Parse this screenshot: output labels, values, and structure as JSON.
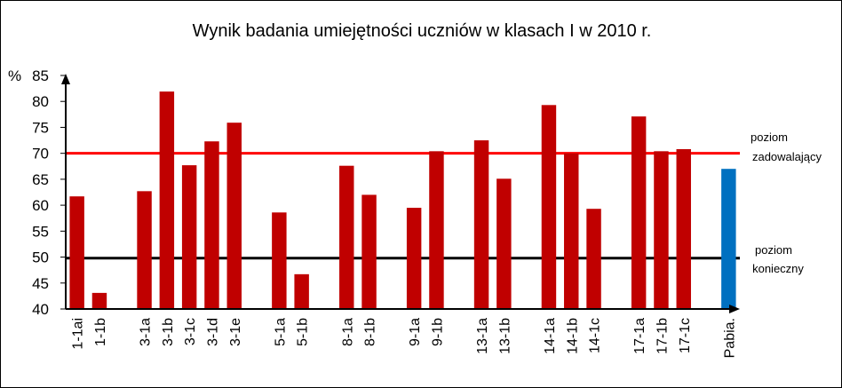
{
  "chart_data": {
    "type": "bar",
    "title": "Wynik badania  umiejętności uczniów  w klasach I w 2010 r.",
    "ylabel": "%",
    "ylim": [
      40,
      85
    ],
    "yticks": [
      "40",
      "45",
      "50",
      "55",
      "60",
      "65",
      "70",
      "75",
      "80",
      "85"
    ],
    "grid": false,
    "colors": {
      "bar": "#c00000",
      "highlight": "#0070c0",
      "line_satisfactory": "#ff0000",
      "line_required": "#000000"
    },
    "categories": [
      "1-1ai",
      "1-1b",
      "",
      "3-1a",
      "3-1b",
      "3-1c",
      "3-1d",
      "3-1e",
      "",
      "5-1a",
      "5-1b",
      "",
      "8-1a",
      "8-1b",
      "",
      "9-1a",
      "9-1b",
      "",
      "13-1a",
      "13-1b",
      "",
      "14-1a",
      "14-1b",
      "14-1c",
      "",
      "17-1a",
      "17-1b",
      "17-1c",
      "",
      "Pabia."
    ],
    "values": [
      61.7,
      43.1,
      null,
      62.7,
      81.9,
      67.7,
      72.3,
      75.9,
      null,
      58.6,
      46.7,
      null,
      67.6,
      62.0,
      null,
      59.5,
      70.4,
      null,
      72.5,
      65.1,
      null,
      79.3,
      70.0,
      59.3,
      null,
      77.1,
      70.4,
      70.8,
      null,
      67.0
    ],
    "highlight_category": "Pabia.",
    "reference_lines": [
      {
        "value": 70,
        "label_line1": "poziom",
        "label_line2": "zadowalający"
      },
      {
        "value": 49.8,
        "label_line1": "poziom",
        "label_line2": "konieczny"
      }
    ]
  }
}
